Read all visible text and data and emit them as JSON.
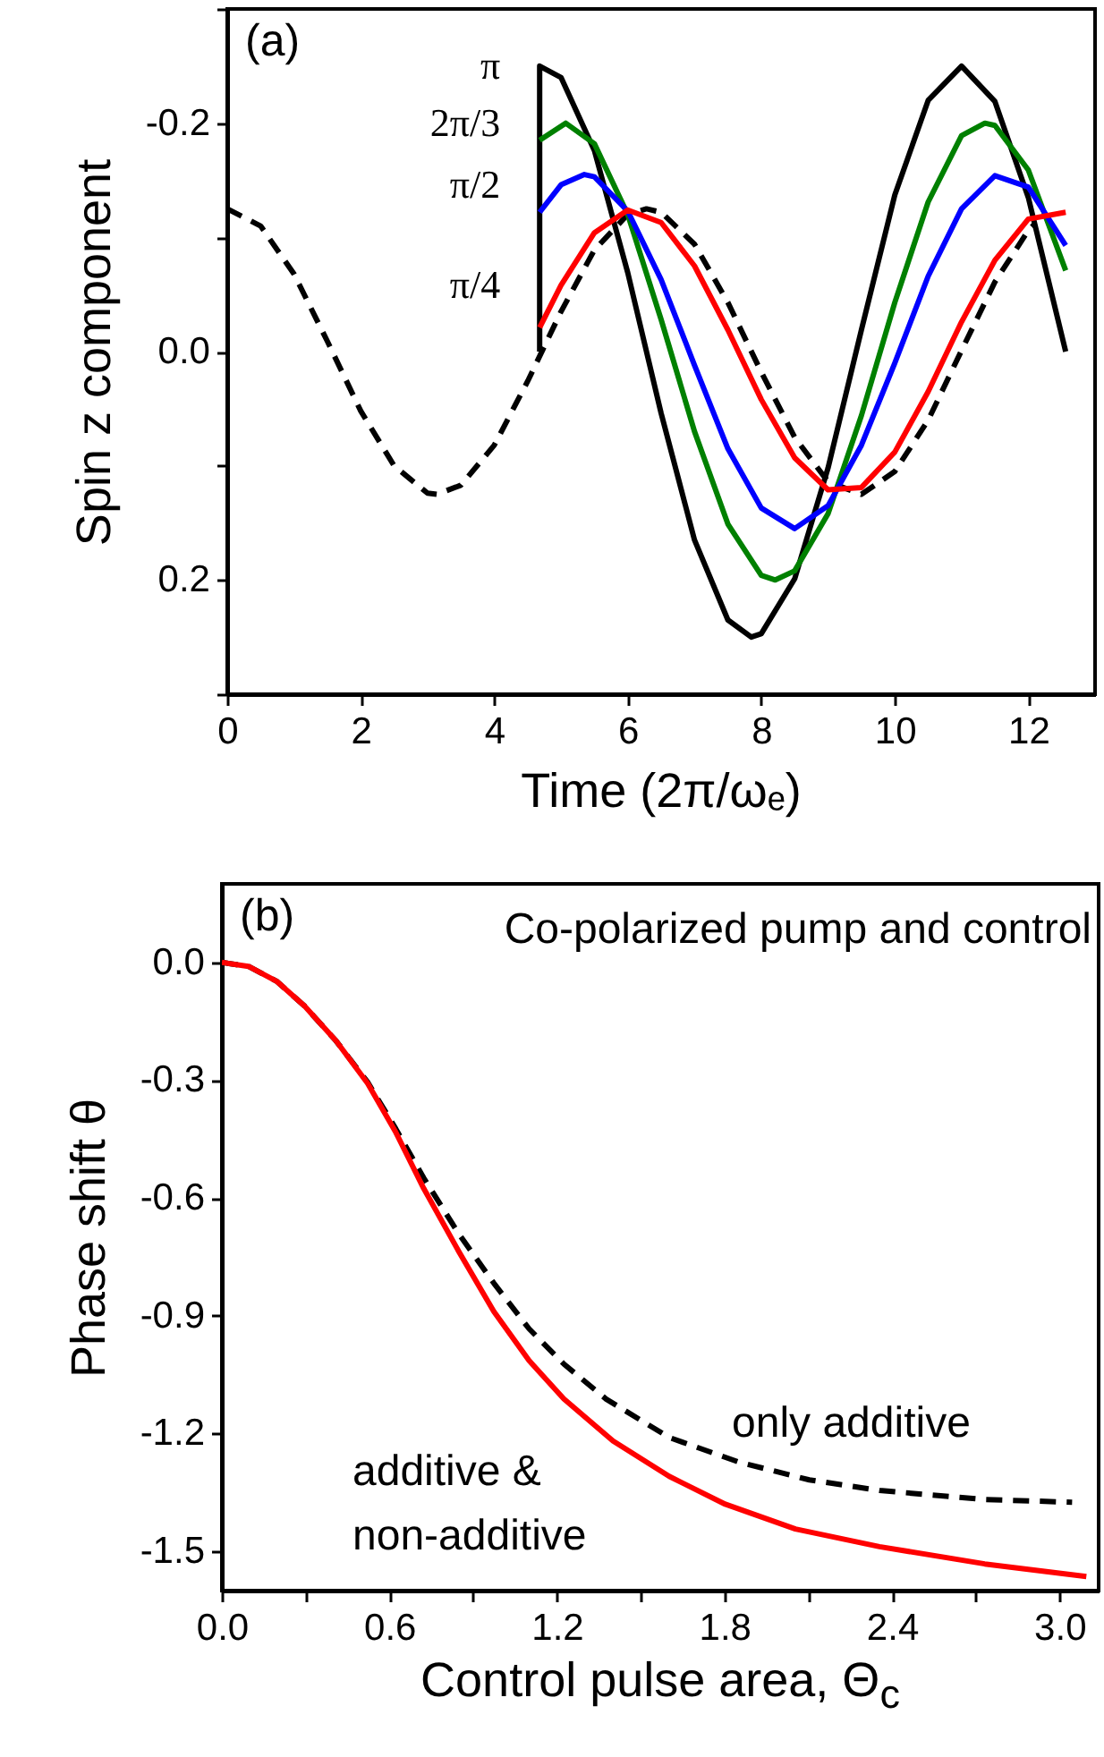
{
  "chart_data": [
    {
      "type": "line",
      "xlabel": "Time (2π/ωₑ)",
      "ylabel": "Spin z component",
      "xlim": [
        0,
        13
      ],
      "ylim": [
        0.3,
        -0.3
      ],
      "xticks": [
        0,
        2,
        4,
        6,
        8,
        10,
        12
      ],
      "yticks": [
        {
          "value": -0.3,
          "label": null
        },
        -0.2,
        {
          "value": -0.1,
          "label": null
        },
        {
          "value": 0,
          "label": "0.0"
        },
        {
          "value": 0.1,
          "label": null
        },
        0.2,
        {
          "value": 0.3,
          "label": null
        }
      ],
      "grid": false,
      "marker": "none",
      "annotations": [
        "(a)"
      ],
      "series": [
        {
          "color": "#000000",
          "line_style": "dashed",
          "x": [
            0,
            0.5,
            1,
            1.5,
            2,
            2.5,
            3,
            3.14,
            3.5,
            4,
            4.5,
            5,
            5.5,
            6,
            6.28,
            6.5,
            7,
            7.5,
            8,
            8.5,
            9,
            9.5,
            10,
            10.5,
            11,
            11.5,
            12,
            12.1
          ],
          "values": [
            -0.125,
            -0.11,
            -0.068,
            -0.009,
            0.052,
            0.1,
            0.124,
            0.125,
            0.117,
            0.082,
            0.026,
            -0.035,
            -0.089,
            -0.12,
            -0.125,
            -0.122,
            -0.094,
            -0.043,
            0.018,
            0.075,
            0.114,
            0.125,
            0.105,
            0.06,
            -0.001,
            -0.061,
            -0.106,
            -0.112
          ]
        },
        {
          "name": "π",
          "color": "#000000",
          "line_style": "solid",
          "x": [
            4.68,
            4.68,
            5,
            5.5,
            6,
            6.5,
            7,
            7.5,
            7.85,
            8,
            8.5,
            9,
            9.5,
            10,
            10.5,
            11,
            11.5,
            12,
            12.56
          ],
          "values": [
            0,
            -0.25,
            -0.24,
            -0.176,
            -0.069,
            0.054,
            0.165,
            0.235,
            0.25,
            0.247,
            0.199,
            0.102,
            -0.019,
            -0.137,
            -0.22,
            -0.25,
            -0.219,
            -0.135,
            0
          ]
        },
        {
          "name": "2π/3",
          "color": "#008000",
          "line_style": "solid",
          "x": [
            4.68,
            5.07,
            5.5,
            6,
            6.5,
            7,
            7.5,
            8,
            8.21,
            8.5,
            9,
            9.5,
            10,
            10.5,
            11,
            11.35,
            11.5,
            12,
            12.56
          ],
          "values": [
            -0.185,
            -0.2,
            -0.182,
            -0.12,
            -0.028,
            0.07,
            0.151,
            0.196,
            0.2,
            0.192,
            0.142,
            0.056,
            -0.043,
            -0.131,
            -0.189,
            -0.2,
            -0.198,
            -0.159,
            -0.071
          ]
        },
        {
          "name": "π/2",
          "color": "#0000ff",
          "line_style": "solid",
          "x": [
            4.68,
            5,
            5.35,
            5.5,
            6,
            6.5,
            7,
            7.5,
            8,
            8.5,
            9,
            9.5,
            10,
            10.5,
            11,
            11.5,
            12,
            12.56
          ],
          "values": [
            -0.122,
            -0.146,
            -0.155,
            -0.153,
            -0.123,
            -0.063,
            0.012,
            0.085,
            0.137,
            0.155,
            0.135,
            0.082,
            0.01,
            -0.066,
            -0.125,
            -0.154,
            -0.144,
            -0.093
          ]
        },
        {
          "name": "π/4",
          "color": "#ff0000",
          "line_style": "solid",
          "x": [
            4.68,
            5,
            5.5,
            6,
            6.5,
            7,
            7.5,
            8,
            8.5,
            9,
            9.5,
            10,
            10.5,
            11,
            11.5,
            12,
            12.56
          ],
          "values": [
            -0.021,
            -0.058,
            -0.104,
            -0.124,
            -0.113,
            -0.075,
            -0.019,
            0.042,
            0.093,
            0.121,
            0.119,
            0.088,
            0.035,
            -0.026,
            -0.08,
            -0.116,
            -0.122
          ]
        }
      ]
    },
    {
      "type": "line",
      "xlabel": "Control pulse area, Θ$_{c}$",
      "ylabel": "Phase shift θ",
      "xlim": [
        0,
        3.14
      ],
      "ylim": [
        -1.6,
        0.2
      ],
      "xticks": [
        {
          "value": 0,
          "label": "0.0"
        },
        {
          "value": 0.3,
          "label": null
        },
        0.6,
        {
          "value": 0.9,
          "label": null
        },
        1.2,
        {
          "value": 1.5,
          "label": null
        },
        1.8,
        {
          "value": 2.1,
          "label": null
        },
        2.4,
        {
          "value": 2.7,
          "label": null
        },
        {
          "value": 3,
          "label": "3.0"
        }
      ],
      "yticks": [
        -1.5,
        -1.2,
        -0.9,
        -0.6,
        -0.3,
        {
          "value": 0,
          "label": "0.0"
        }
      ],
      "grid": false,
      "marker": "none",
      "annotations": [
        "(b)",
        "Co-polarized pump and control",
        "only additive",
        "additive &",
        "non-additive"
      ],
      "series": [
        {
          "color": "#000000",
          "line_style": "dashed",
          "x": [
            0,
            0.095,
            0.196,
            0.296,
            0.409,
            0.522,
            0.623,
            0.723,
            0.849,
            0.974,
            1.1,
            1.225,
            1.376,
            1.602,
            1.853,
            2.104,
            2.355,
            2.732,
            3.045
          ],
          "values": [
            0,
            -0.01,
            -0.048,
            -0.111,
            -0.2,
            -0.305,
            -0.424,
            -0.549,
            -0.692,
            -0.817,
            -0.933,
            -1.023,
            -1.112,
            -1.21,
            -1.273,
            -1.318,
            -1.345,
            -1.368,
            -1.375
          ]
        },
        {
          "color": "#ff0000",
          "line_style": "solid",
          "x": [
            0,
            0.095,
            0.196,
            0.296,
            0.409,
            0.522,
            0.623,
            0.723,
            0.849,
            0.974,
            1.1,
            1.225,
            1.401,
            1.602,
            1.803,
            2.054,
            2.355,
            2.732,
            3.096
          ],
          "values": [
            0,
            -0.01,
            -0.048,
            -0.111,
            -0.2,
            -0.308,
            -0.433,
            -0.576,
            -0.737,
            -0.889,
            -1.014,
            -1.112,
            -1.219,
            -1.309,
            -1.38,
            -1.443,
            -1.488,
            -1.532,
            -1.564
          ]
        }
      ]
    }
  ]
}
